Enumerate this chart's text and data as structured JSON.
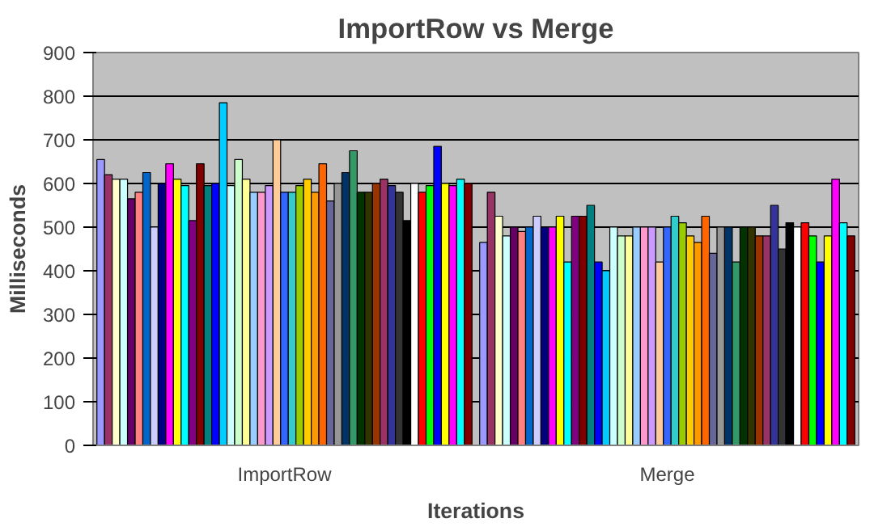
{
  "chart_data": {
    "type": "bar",
    "title": "ImportRow vs Merge",
    "xlabel": "Iterations",
    "ylabel": "Milliseconds",
    "categories": [
      "ImportRow",
      "Merge"
    ],
    "ylim": [
      0,
      900
    ],
    "yticks": [
      0,
      100,
      200,
      300,
      400,
      500,
      600,
      700,
      800,
      900
    ],
    "grid": "y",
    "series": [
      {
        "color": "#9999ff",
        "values": [
          655,
          465
        ]
      },
      {
        "color": "#993366",
        "values": [
          620,
          580
        ]
      },
      {
        "color": "#ffffcc",
        "values": [
          610,
          525
        ]
      },
      {
        "color": "#ccffff",
        "values": [
          610,
          480
        ]
      },
      {
        "color": "#660066",
        "values": [
          565,
          500
        ]
      },
      {
        "color": "#ff8080",
        "values": [
          580,
          490
        ]
      },
      {
        "color": "#0066cc",
        "values": [
          625,
          500
        ]
      },
      {
        "color": "#ccccff",
        "values": [
          500,
          525
        ]
      },
      {
        "color": "#000080",
        "values": [
          600,
          500
        ]
      },
      {
        "color": "#ff00ff",
        "values": [
          645,
          500
        ]
      },
      {
        "color": "#ffff00",
        "values": [
          610,
          525
        ]
      },
      {
        "color": "#00ffff",
        "values": [
          595,
          420
        ]
      },
      {
        "color": "#800080",
        "values": [
          515,
          525
        ]
      },
      {
        "color": "#800000",
        "values": [
          645,
          525
        ]
      },
      {
        "color": "#008080",
        "values": [
          595,
          550
        ]
      },
      {
        "color": "#0000ff",
        "values": [
          600,
          420
        ]
      },
      {
        "color": "#00ccff",
        "values": [
          785,
          400
        ]
      },
      {
        "color": "#ccffff",
        "values": [
          595,
          500
        ]
      },
      {
        "color": "#ccffcc",
        "values": [
          655,
          480
        ]
      },
      {
        "color": "#ffff99",
        "values": [
          610,
          480
        ]
      },
      {
        "color": "#99ccff",
        "values": [
          580,
          500
        ]
      },
      {
        "color": "#ff99cc",
        "values": [
          580,
          500
        ]
      },
      {
        "color": "#cc99ff",
        "values": [
          595,
          500
        ]
      },
      {
        "color": "#ffcc99",
        "values": [
          700,
          420
        ]
      },
      {
        "color": "#3366ff",
        "values": [
          580,
          500
        ]
      },
      {
        "color": "#33cccc",
        "values": [
          580,
          525
        ]
      },
      {
        "color": "#99cc00",
        "values": [
          595,
          510
        ]
      },
      {
        "color": "#ffcc00",
        "values": [
          610,
          480
        ]
      },
      {
        "color": "#ff9900",
        "values": [
          580,
          465
        ]
      },
      {
        "color": "#ff6600",
        "values": [
          645,
          525
        ]
      },
      {
        "color": "#666699",
        "values": [
          560,
          440
        ]
      },
      {
        "color": "#969696",
        "values": [
          600,
          500
        ]
      },
      {
        "color": "#003366",
        "values": [
          625,
          500
        ]
      },
      {
        "color": "#339966",
        "values": [
          675,
          420
        ]
      },
      {
        "color": "#003300",
        "values": [
          580,
          500
        ]
      },
      {
        "color": "#333300",
        "values": [
          580,
          500
        ]
      },
      {
        "color": "#993300",
        "values": [
          600,
          480
        ]
      },
      {
        "color": "#993366",
        "values": [
          610,
          480
        ]
      },
      {
        "color": "#333399",
        "values": [
          595,
          550
        ]
      },
      {
        "color": "#333333",
        "values": [
          580,
          450
        ]
      },
      {
        "color": "#000000",
        "values": [
          515,
          510
        ]
      },
      {
        "color": "#ffffff",
        "values": [
          600,
          500
        ]
      },
      {
        "color": "#ff0000",
        "values": [
          580,
          510
        ]
      },
      {
        "color": "#00ff00",
        "values": [
          595,
          480
        ]
      },
      {
        "color": "#0000ff",
        "values": [
          685,
          420
        ]
      },
      {
        "color": "#ffff00",
        "values": [
          600,
          480
        ]
      },
      {
        "color": "#ff00ff",
        "values": [
          595,
          610
        ]
      },
      {
        "color": "#00ffff",
        "values": [
          610,
          510
        ]
      },
      {
        "color": "#800000",
        "values": [
          600,
          480
        ]
      }
    ]
  }
}
